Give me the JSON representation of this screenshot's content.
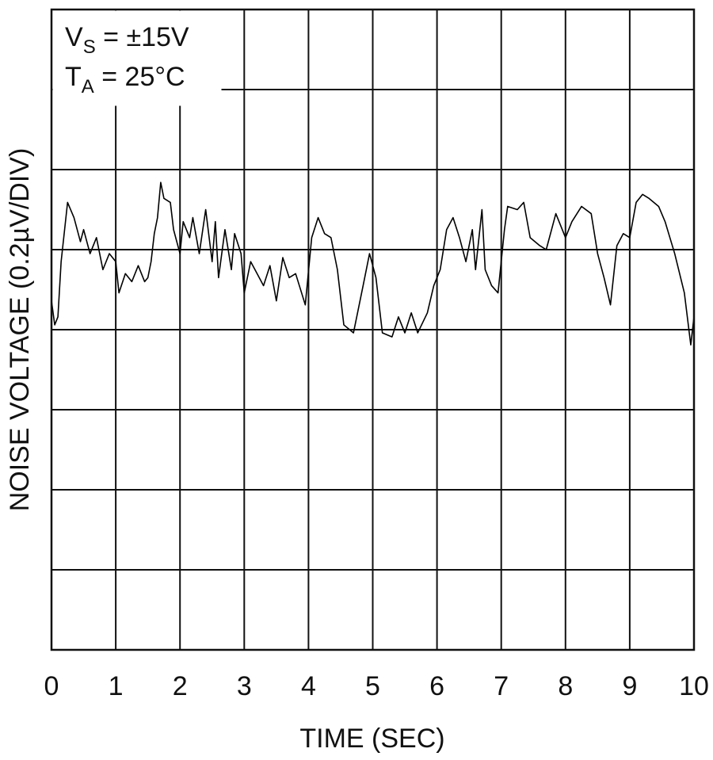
{
  "chart_data": {
    "type": "line",
    "xlabel": "TIME (SEC)",
    "ylabel": "NOISE VOLTAGE (0.2µV/DIV)",
    "annotations": [
      {
        "text": "V",
        "sub": "S",
        "rest": " = ±15V"
      },
      {
        "text": "T",
        "sub": "A",
        "rest": " = 25°C"
      }
    ],
    "xlim": [
      0,
      10
    ],
    "xticks": [
      0,
      1,
      2,
      3,
      4,
      5,
      6,
      7,
      8,
      9,
      10
    ],
    "ylim": [
      0,
      8
    ],
    "ygrid": [
      1,
      2,
      3,
      4,
      5,
      6,
      7
    ],
    "grid": true,
    "color": "#000000",
    "x": [
      0,
      0.05,
      0.1,
      0.15,
      0.25,
      0.35,
      0.45,
      0.5,
      0.6,
      0.7,
      0.8,
      0.9,
      1.0,
      1.05,
      1.15,
      1.25,
      1.35,
      1.45,
      1.5,
      1.55,
      1.6,
      1.65,
      1.7,
      1.75,
      1.85,
      1.9,
      2.0,
      2.05,
      2.15,
      2.2,
      2.3,
      2.4,
      2.5,
      2.55,
      2.6,
      2.7,
      2.8,
      2.85,
      2.95,
      3.0,
      3.1,
      3.2,
      3.3,
      3.4,
      3.5,
      3.6,
      3.7,
      3.8,
      3.95,
      4.05,
      4.15,
      4.25,
      4.35,
      4.45,
      4.55,
      4.7,
      4.85,
      4.95,
      5.05,
      5.15,
      5.3,
      5.4,
      5.5,
      5.6,
      5.7,
      5.85,
      5.95,
      6.05,
      6.15,
      6.25,
      6.35,
      6.45,
      6.55,
      6.6,
      6.7,
      6.75,
      6.85,
      6.95,
      7.05,
      7.1,
      7.25,
      7.35,
      7.45,
      7.6,
      7.7,
      7.85,
      8.0,
      8.1,
      8.25,
      8.4,
      8.5,
      8.6,
      8.7,
      8.8,
      8.9,
      9.0,
      9.1,
      9.2,
      9.3,
      9.45,
      9.55,
      9.7,
      9.85,
      9.95,
      10.0
    ],
    "values": [
      4.36,
      4.06,
      4.16,
      4.85,
      5.59,
      5.4,
      5.1,
      5.25,
      4.95,
      5.15,
      4.75,
      4.95,
      4.85,
      4.46,
      4.7,
      4.6,
      4.8,
      4.6,
      4.65,
      4.85,
      5.2,
      5.4,
      5.84,
      5.64,
      5.59,
      5.25,
      4.95,
      5.35,
      5.15,
      5.4,
      4.95,
      5.5,
      4.85,
      5.35,
      4.65,
      5.25,
      4.75,
      5.2,
      4.95,
      4.46,
      4.85,
      4.7,
      4.55,
      4.8,
      4.36,
      4.9,
      4.65,
      4.7,
      4.31,
      5.15,
      5.4,
      5.2,
      5.15,
      4.75,
      4.06,
      3.96,
      4.55,
      4.95,
      4.65,
      3.96,
      3.91,
      4.16,
      3.96,
      4.21,
      3.96,
      4.21,
      4.55,
      4.75,
      5.25,
      5.4,
      5.15,
      4.85,
      5.25,
      4.75,
      5.5,
      4.75,
      4.55,
      4.46,
      5.25,
      5.54,
      5.5,
      5.59,
      5.15,
      5.05,
      5.0,
      5.45,
      5.15,
      5.35,
      5.54,
      5.45,
      4.95,
      4.65,
      4.31,
      5.05,
      5.2,
      5.15,
      5.59,
      5.69,
      5.64,
      5.54,
      5.35,
      4.95,
      4.46,
      3.81,
      4.16
    ]
  }
}
